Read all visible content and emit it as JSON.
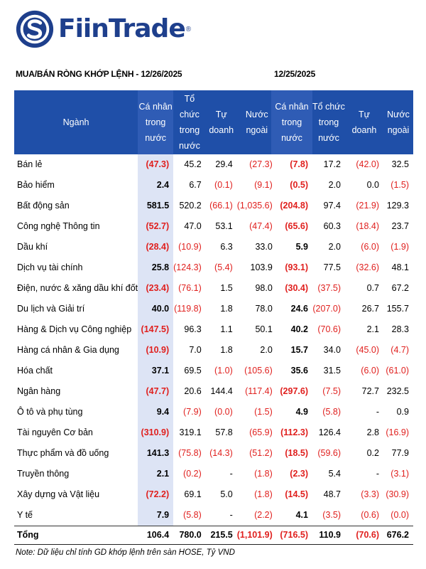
{
  "brand": {
    "name": "FiinTrade",
    "reg": "®"
  },
  "titles": {
    "left": "MUA/BÁN RÒNG KHỚP LỆNH - 12/26/2025",
    "right": "12/25/2025"
  },
  "headers_left": [
    "Ngành",
    "Cá nhân trong nước",
    "Tổ chức trong nước",
    "Tự doanh",
    "Nước ngoài"
  ],
  "headers_right": [
    "Cá nhân trong nước",
    "Tổ chức trong nước",
    "Tự doanh",
    "Nước ngoài"
  ],
  "rows": [
    {
      "name": "Bán lẻ",
      "d1": [
        "(47.3)",
        "45.2",
        "29.4",
        "(27.3)"
      ],
      "d2": [
        "(7.8)",
        "17.2",
        "(42.0)",
        "32.5"
      ]
    },
    {
      "name": "Bảo hiểm",
      "d1": [
        "2.4",
        "6.7",
        "(0.1)",
        "(9.1)"
      ],
      "d2": [
        "(0.5)",
        "2.0",
        "0.0",
        "(1.5)"
      ]
    },
    {
      "name": "Bất động sản",
      "d1": [
        "581.5",
        "520.2",
        "(66.1)",
        "(1,035.6)"
      ],
      "d2": [
        "(204.8)",
        "97.4",
        "(21.9)",
        "129.3"
      ]
    },
    {
      "name": "Công nghệ Thông tin",
      "d1": [
        "(52.7)",
        "47.0",
        "53.1",
        "(47.4)"
      ],
      "d2": [
        "(65.6)",
        "60.3",
        "(18.4)",
        "23.7"
      ]
    },
    {
      "name": "Dầu khí",
      "d1": [
        "(28.4)",
        "(10.9)",
        "6.3",
        "33.0"
      ],
      "d2": [
        "5.9",
        "2.0",
        "(6.0)",
        "(1.9)"
      ]
    },
    {
      "name": "Dịch vụ tài chính",
      "d1": [
        "25.8",
        "(124.3)",
        "(5.4)",
        "103.9"
      ],
      "d2": [
        "(93.1)",
        "77.5",
        "(32.6)",
        "48.1"
      ]
    },
    {
      "name": "Điện, nước & xăng dầu khí đốt",
      "d1": [
        "(23.4)",
        "(76.1)",
        "1.5",
        "98.0"
      ],
      "d2": [
        "(30.4)",
        "(37.5)",
        "0.7",
        "67.2"
      ]
    },
    {
      "name": "Du lịch và Giải trí",
      "d1": [
        "40.0",
        "(119.8)",
        "1.8",
        "78.0"
      ],
      "d2": [
        "24.6",
        "(207.0)",
        "26.7",
        "155.7"
      ]
    },
    {
      "name": "Hàng & Dịch vụ Công nghiệp",
      "d1": [
        "(147.5)",
        "96.3",
        "1.1",
        "50.1"
      ],
      "d2": [
        "40.2",
        "(70.6)",
        "2.1",
        "28.3"
      ]
    },
    {
      "name": "Hàng cá nhân & Gia dụng",
      "d1": [
        "(10.9)",
        "7.0",
        "1.8",
        "2.0"
      ],
      "d2": [
        "15.7",
        "34.0",
        "(45.0)",
        "(4.7)"
      ]
    },
    {
      "name": "Hóa chất",
      "d1": [
        "37.1",
        "69.5",
        "(1.0)",
        "(105.6)"
      ],
      "d2": [
        "35.6",
        "31.5",
        "(6.0)",
        "(61.0)"
      ]
    },
    {
      "name": "Ngân hàng",
      "d1": [
        "(47.7)",
        "20.6",
        "144.4",
        "(117.4)"
      ],
      "d2": [
        "(297.6)",
        "(7.5)",
        "72.7",
        "232.5"
      ]
    },
    {
      "name": "Ô tô và phụ tùng",
      "d1": [
        "9.4",
        "(7.9)",
        "(0.0)",
        "(1.5)"
      ],
      "d2": [
        "4.9",
        "(5.8)",
        "-",
        "0.9"
      ]
    },
    {
      "name": "Tài nguyên Cơ bản",
      "d1": [
        "(310.9)",
        "319.1",
        "57.8",
        "(65.9)"
      ],
      "d2": [
        "(112.3)",
        "126.4",
        "2.8",
        "(16.9)"
      ]
    },
    {
      "name": "Thực phẩm và đồ uống",
      "d1": [
        "141.3",
        "(75.8)",
        "(14.3)",
        "(51.2)"
      ],
      "d2": [
        "(18.5)",
        "(59.6)",
        "0.2",
        "77.9"
      ]
    },
    {
      "name": "Truyền thông",
      "d1": [
        "2.1",
        "(0.2)",
        "-",
        "(1.8)"
      ],
      "d2": [
        "(2.3)",
        "5.4",
        "-",
        "(3.1)"
      ]
    },
    {
      "name": "Xây dựng và Vật liệu",
      "d1": [
        "(72.2)",
        "69.1",
        "5.0",
        "(1.8)"
      ],
      "d2": [
        "(14.5)",
        "48.7",
        "(3.3)",
        "(30.9)"
      ]
    },
    {
      "name": "Y tế",
      "d1": [
        "7.9",
        "(5.8)",
        "-",
        "(2.2)"
      ],
      "d2": [
        "4.1",
        "(3.5)",
        "(0.6)",
        "(0.0)"
      ]
    }
  ],
  "total": {
    "name": "Tổng",
    "d1": [
      "106.4",
      "780.0",
      "215.5",
      "(1,101.9)"
    ],
    "d2": [
      "(716.5)",
      "110.9",
      "(70.6)",
      "676.2"
    ]
  },
  "note": "Note: Dữ liệu chỉ tính GD khớp lệnh trên sàn HOSE, Tỷ VND",
  "colors": {
    "header_bg": "#1f4fa8",
    "negative": "#e0201e",
    "highlight_col": "#dde4f5",
    "brand": "#1e3f8c"
  }
}
